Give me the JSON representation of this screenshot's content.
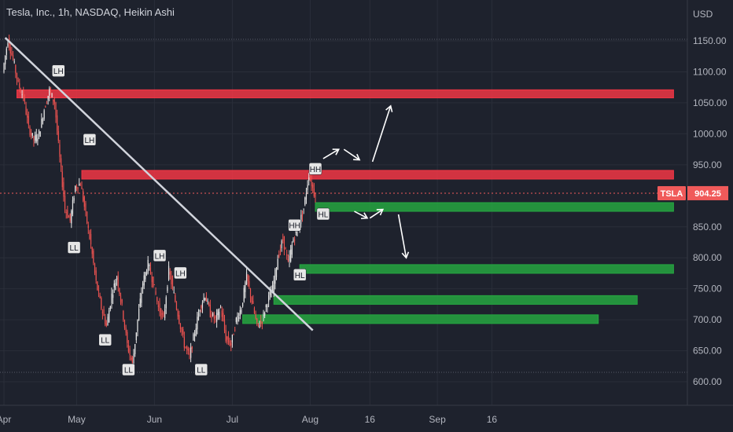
{
  "header": {
    "title": "Tesla, Inc., 1h, NASDAQ, Heikin Ashi"
  },
  "colors": {
    "background": "#1e222d",
    "grid": "#2a2e39",
    "up": "#e8e8e8",
    "down": "#ef5350",
    "resistance": "#f23645",
    "support": "#26a641",
    "trendline": "#d1d4dc",
    "price_tag": "#f05a5a"
  },
  "chart_data": {
    "type": "candlestick",
    "chart_style": "Heikin Ashi",
    "symbol": "TSLA",
    "currency_label": "USD",
    "current_price": 904.25,
    "current_price_label": "904.25",
    "ylim": [
      565,
      1185
    ],
    "y_ticks": [
      {
        "value": 1150,
        "label": "1150.00"
      },
      {
        "value": 1100,
        "label": "1100.00"
      },
      {
        "value": 1050,
        "label": "1050.00"
      },
      {
        "value": 1000,
        "label": "1000.00"
      },
      {
        "value": 950,
        "label": "950.00"
      },
      {
        "value": 850,
        "label": "850.00"
      },
      {
        "value": 800,
        "label": "800.00"
      },
      {
        "value": 750,
        "label": "750.00"
      },
      {
        "value": 700,
        "label": "700.00"
      },
      {
        "value": 650,
        "label": "650.00"
      },
      {
        "value": 600,
        "label": "600.00"
      }
    ],
    "x_ticks": [
      {
        "t": 0,
        "label": "Apr"
      },
      {
        "t": 28,
        "label": "May"
      },
      {
        "t": 58,
        "label": "Jun"
      },
      {
        "t": 88,
        "label": "Jul"
      },
      {
        "t": 118,
        "label": "Aug"
      },
      {
        "t": 141,
        "label": "16"
      },
      {
        "t": 167,
        "label": "Sep"
      },
      {
        "t": 188,
        "label": "16"
      }
    ],
    "price_path": [
      [
        0,
        1100
      ],
      [
        2,
        1152
      ],
      [
        4,
        1120
      ],
      [
        6,
        1080
      ],
      [
        8,
        1060
      ],
      [
        10,
        1010
      ],
      [
        12,
        990
      ],
      [
        14,
        1000
      ],
      [
        16,
        1040
      ],
      [
        18,
        1070
      ],
      [
        20,
        1050
      ],
      [
        22,
        960
      ],
      [
        24,
        880
      ],
      [
        26,
        860
      ],
      [
        28,
        915
      ],
      [
        30,
        920
      ],
      [
        32,
        870
      ],
      [
        34,
        820
      ],
      [
        36,
        760
      ],
      [
        38,
        720
      ],
      [
        40,
        690
      ],
      [
        42,
        740
      ],
      [
        44,
        770
      ],
      [
        46,
        720
      ],
      [
        48,
        660
      ],
      [
        50,
        628
      ],
      [
        52,
        700
      ],
      [
        54,
        760
      ],
      [
        56,
        790
      ],
      [
        58,
        760
      ],
      [
        60,
        720
      ],
      [
        62,
        700
      ],
      [
        64,
        780
      ],
      [
        66,
        740
      ],
      [
        68,
        700
      ],
      [
        70,
        660
      ],
      [
        72,
        640
      ],
      [
        74,
        680
      ],
      [
        76,
        720
      ],
      [
        78,
        740
      ],
      [
        80,
        710
      ],
      [
        82,
        700
      ],
      [
        84,
        720
      ],
      [
        86,
        670
      ],
      [
        88,
        660
      ],
      [
        90,
        700
      ],
      [
        92,
        720
      ],
      [
        94,
        770
      ],
      [
        96,
        730
      ],
      [
        98,
        690
      ],
      [
        100,
        700
      ],
      [
        102,
        730
      ],
      [
        104,
        750
      ],
      [
        106,
        800
      ],
      [
        108,
        830
      ],
      [
        110,
        790
      ],
      [
        112,
        830
      ],
      [
        114,
        850
      ],
      [
        116,
        880
      ],
      [
        118,
        935
      ],
      [
        120,
        904.25
      ]
    ],
    "trendline": {
      "start": [
        0.5,
        1155
      ],
      "end": [
        119,
        683
      ]
    },
    "resistance_zones": [
      {
        "t_start": 5,
        "t_end": 258,
        "low": 1058,
        "high": 1071
      },
      {
        "t_start": 30,
        "t_end": 258,
        "low": 927,
        "high": 941
      }
    ],
    "support_zones": [
      {
        "t_start": 120,
        "t_end": 258,
        "low": 875,
        "high": 889
      },
      {
        "t_start": 114,
        "t_end": 258,
        "low": 775,
        "high": 789
      },
      {
        "t_start": 104,
        "t_end": 244,
        "low": 725,
        "high": 739
      },
      {
        "t_start": 92,
        "t_end": 229,
        "low": 694,
        "high": 708
      }
    ],
    "annotations": [
      {
        "label": "LH",
        "t": 21,
        "price": 1101
      },
      {
        "label": "LH",
        "t": 33,
        "price": 990
      },
      {
        "label": "LL",
        "t": 27,
        "price": 816
      },
      {
        "label": "LL",
        "t": 39,
        "price": 667
      },
      {
        "label": "LL",
        "t": 48,
        "price": 619
      },
      {
        "label": "LH",
        "t": 60,
        "price": 803
      },
      {
        "label": "LH",
        "t": 68,
        "price": 775
      },
      {
        "label": "LL",
        "t": 76,
        "price": 619
      },
      {
        "label": "HH",
        "t": 112,
        "price": 852
      },
      {
        "label": "HL",
        "t": 114,
        "price": 772
      },
      {
        "label": "HH",
        "t": 120,
        "price": 943
      },
      {
        "label": "HL",
        "t": 123,
        "price": 870
      }
    ],
    "projection_arrows": [
      {
        "from": [
          123,
          960
        ],
        "to": [
          129,
          975
        ]
      },
      {
        "from": [
          131,
          975
        ],
        "to": [
          137,
          958
        ]
      },
      {
        "from": [
          142,
          955
        ],
        "to": [
          149,
          1045
        ]
      },
      {
        "from": [
          135,
          875
        ],
        "to": [
          140,
          864
        ]
      },
      {
        "from": [
          141,
          864
        ],
        "to": [
          146,
          878
        ]
      },
      {
        "from": [
          152,
          870
        ],
        "to": [
          155,
          800
        ]
      }
    ]
  }
}
